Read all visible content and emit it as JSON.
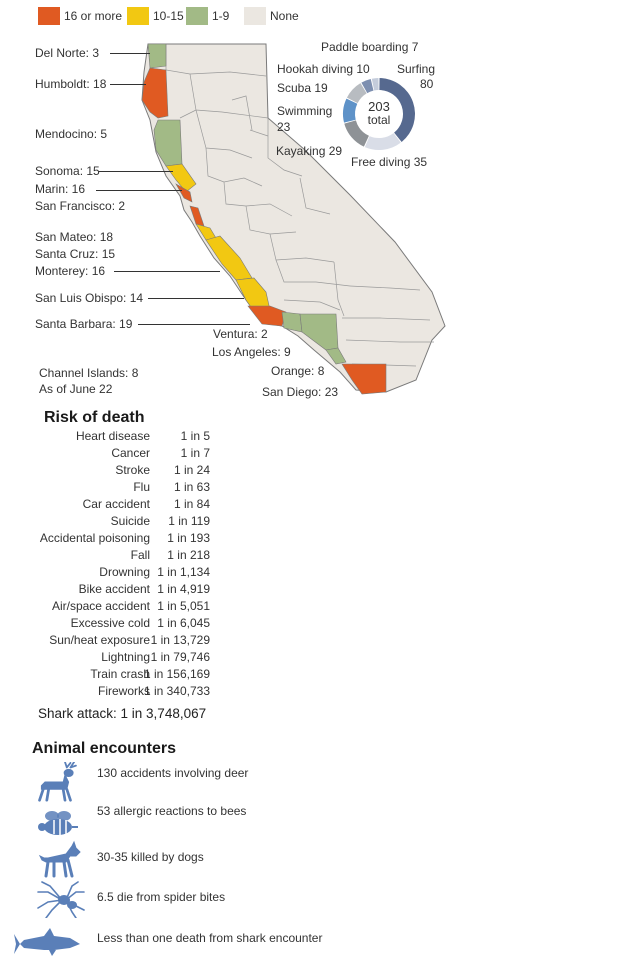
{
  "legend": [
    {
      "label": "16 or more",
      "color": "#e05a22"
    },
    {
      "label": "10-15",
      "color": "#f2c812"
    },
    {
      "label": "1-9",
      "color": "#a2ba86"
    },
    {
      "label": "None",
      "color": "#ebe7e1"
    }
  ],
  "counties": [
    {
      "label": "Del Norte: 3"
    },
    {
      "label": "Humboldt: 18"
    },
    {
      "label": "Mendocino: 5"
    },
    {
      "label": "Sonoma: 15"
    },
    {
      "label": "Marin: 16"
    },
    {
      "label": "San Francisco: 2"
    },
    {
      "label": "San Mateo: 18"
    },
    {
      "label": "Santa Cruz: 15"
    },
    {
      "label": "Monterey: 16"
    },
    {
      "label": "San Luis Obispo: 14"
    },
    {
      "label": "Santa Barbara: 19"
    },
    {
      "label": "Ventura: 2"
    },
    {
      "label": "Los Angeles: 9"
    },
    {
      "label": "Orange: 8"
    },
    {
      "label": "San Diego: 23"
    }
  ],
  "footnotes": {
    "channel_islands": "Channel Islands: 8",
    "as_of": "As of June 22"
  },
  "activities": {
    "total_number": "203",
    "total_label": "total",
    "labels": {
      "paddle": "Paddle boarding 7",
      "hookah": "Hookah diving 10",
      "scuba": "Scuba 19",
      "swimming_1": "Swimming",
      "swimming_2": "23",
      "kayaking": "Kayaking 29",
      "free_diving": "Free diving 35",
      "surfing_1": "Surfing",
      "surfing_2": "80"
    }
  },
  "chart_data": {
    "type": "pie",
    "title": "203 total",
    "categories": [
      "Surfing",
      "Free diving",
      "Kayaking",
      "Swimming",
      "Scuba",
      "Hookah diving",
      "Paddle boarding"
    ],
    "values": [
      80,
      35,
      29,
      23,
      19,
      10,
      7
    ],
    "colors": [
      "#56698f",
      "#d9dde7",
      "#8e9296",
      "#5e92c8",
      "#b8bcc1",
      "#7d8fb0",
      "#c4ccdb"
    ]
  },
  "risk": {
    "title": "Risk of death",
    "rows": [
      {
        "cause": "Heart disease",
        "odds": "1 in 5"
      },
      {
        "cause": "Cancer",
        "odds": "1 in 7"
      },
      {
        "cause": "Stroke",
        "odds": "1 in 24"
      },
      {
        "cause": "Flu",
        "odds": "1 in 63"
      },
      {
        "cause": "Car accident",
        "odds": "1 in 84"
      },
      {
        "cause": "Suicide",
        "odds": "1 in 119"
      },
      {
        "cause": "Accidental poisoning",
        "odds": "1 in 193"
      },
      {
        "cause": "Fall",
        "odds": "1 in 218"
      },
      {
        "cause": "Drowning",
        "odds": "1 in 1,134"
      },
      {
        "cause": "Bike accident",
        "odds": "1 in 4,919"
      },
      {
        "cause": "Air/space accident",
        "odds": "1 in 5,051"
      },
      {
        "cause": "Excessive cold",
        "odds": "1 in 6,045"
      },
      {
        "cause": "Sun/heat exposure",
        "odds": "1 in 13,729"
      },
      {
        "cause": "Lightning",
        "odds": "1 in 79,746"
      },
      {
        "cause": "Train crash",
        "odds": "1 in 156,169"
      },
      {
        "cause": "Fireworks",
        "odds": "1 in 340,733"
      }
    ],
    "shark": "Shark attack: 1 in 3,748,067"
  },
  "animals": {
    "title": "Animal encounters",
    "rows": [
      {
        "icon": "deer-icon",
        "text": "130 accidents involving deer"
      },
      {
        "icon": "bee-icon",
        "text": "53  allergic reactions to bees"
      },
      {
        "icon": "dog-icon",
        "text": "30-35 killed by dogs"
      },
      {
        "icon": "spider-icon",
        "text": "6.5  die from spider bites"
      },
      {
        "icon": "shark-icon",
        "text": "Less than one death from shark encounter"
      }
    ]
  }
}
